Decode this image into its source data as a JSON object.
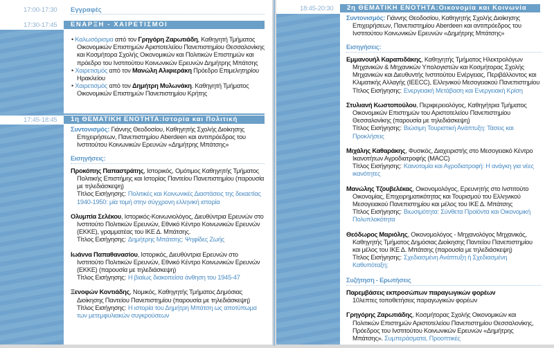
{
  "colors": {
    "band": "#7cadd3",
    "bar": "#6a9fc7",
    "accent": "#4a8bc2",
    "time": "#8fb2d2"
  },
  "title_label": "Τίτλος Εισήγησης:",
  "left": {
    "registration": {
      "time": "17:00-17:30",
      "label": "Εγγραφές"
    },
    "opening": {
      "time": "17:30-17:45",
      "header": "ΕΝΑΡΞΗ - ΧΑΙΡΕΤΙΣΜΟΙ",
      "items": [
        {
          "accent": "Καλωσόρισμα",
          "pre": " από τον ",
          "name": "Γρηγόρη Ζαρωτιάδη",
          "rest": ", Καθηγητή Τμήματος Οικονομικών Επιστημών Αριστοτελείου Πανεπιστημίου Θεσσαλονίκης και Κοσμήτορα Σχολής Οικονομικών και Πολιτικών Επιστημών και πρόεδρο του Ινστιτούτου Κοινωνικών Ερευνών Δημήτρης Μπάτσης"
        },
        {
          "accent": "Χαιρετισμός",
          "pre": " από τον ",
          "name": "Μανώλη Αλιφιεράκη",
          "rest": " Πρόεδρο Επιμελητηρίου Ηρακλείου"
        },
        {
          "accent": "Χαιρετισμός",
          "pre": " από τον ",
          "name": "Δημήτρη Μυλωνάκη",
          "rest": ". Καθηγητή Τμήματος Οικονομικών Επιστημών Πανεπιστημίου Κρήτης"
        }
      ]
    },
    "session": {
      "time": "17:45-18:45",
      "header": "1η ΘΕΜΑΤΙΚΗ ΕΝΟΤΗΤΑ:Ιστορία και Πολιτική",
      "coord_label": "Συντονισμός:",
      "coord": " Γιάννης Θεοδοσίου, Καθηγητής Σχολής Διοίκησης Επιχειρήσεων, Πανεπιστημίου Aberdeen και αντιπρόεδρος του Ινστιτούτου Κοινωνικών Ερευνών «Δημήτρης Μπάτσης»",
      "talks_label": "Εισηγήσεις:",
      "talks": [
        {
          "name": "Προκόπης Παπαστράτης",
          "aff": ", Ιστορικός, Ομότιμος Καθηγητής Τμήματος Πολιτικής Επιστήμης και Ιστορίας Παντείου Πανεπιστημίου (παρουσία με τηλεδιάσκεψη)",
          "title": "Πολιτικές και Κοινωνικές Διαστάσεις της δεκαετίας 1940-1950: μία τομή στην σύγχρονη ελληνική ιστορία"
        },
        {
          "name": "Ολυμπία Σελέκου",
          "aff": ", Ιστορικός-Κοινωνιολόγος, Διευθύντρια Ερευνών στο Ινστιτούτο Πολιτικών Ερευνών, Εθνικό Κέντρο Κοινωνικών Ερευνών (ΕΚΚΕ), γραμματέας του ΙΚΕ Δ. Μπάτσης.",
          "title": "Δημήτρης Μπάτσης: Ψηφίδες Ζωής"
        },
        {
          "name": "Ιωάννα Παπαθανασίου",
          "aff": ", Ιστορικός, Διευθύντρια Ερευνών στο Ινστιτούτο Πολιτικών Ερευνών, Εθνικό Κέντρο Κοινωνικών Ερευνών (ΕΚΚΕ) (παρουσία με τηλεδιάσκεψη)",
          "title": "Η βιαίως διακοπείσα άνθηση του 1945-47"
        },
        {
          "name": "Ξενοφών Κοντιάδης",
          "aff": ", Νομικός, Καθηγητής Τμήματος Δημόσιας Διοίκησης Παντείου Πανεπιστημίου (παρουσία με τηλεδιάσκεψη)",
          "title": "Η ιστορία του Δημήτρη Μπάτση ως αποτύπωμα των μετεμφυλιακών συγκρούσεων"
        }
      ]
    }
  },
  "right": {
    "session": {
      "time": "18:45-20:30",
      "header": "2η ΘΕΜΑΤΙΚΗ ΕΝΟΤΗΤΑ:Οικονομία και Κοινωνία",
      "coord_label": "Συντονισμός:",
      "coord": " Γιάννης Θεοδοσίου, Καθηγητής Σχολής Διοίκησης Επιχειρήσεων, Πανεπιστημίου Aberdeen και αντιπρόεδρος του Ινστιτούτου Κοινωνικών Ερευνών «Δημήτρης Μπάτσης»",
      "talks_label": "Εισηγήσεις:",
      "talks": [
        {
          "name": "Εμμανουήλ Καραπιδάκης",
          "aff": ", Καθηγητής Τμήματος Ηλεκτρολόγων Μηχανικών & Μηχανικών Υπολογιστών και Κοσμήτορας Σχολής Μηχανικών και Διευθυντής Ινστιτούτου Ενέργειας, Περιβάλλοντος και Κλιματικής Αλλαγής (IEECC), Ελληνικού Μεσογειακού Πανεπιστημίου",
          "title": "Ενεργειακή Μετάβαση και Ενεργειακή Κρίση"
        },
        {
          "name": "Στυλιανή Κωστοπούλου",
          "aff": ", Περιφερειολόγος, Καθηγήτρια Τμήματος Οικονομικών Επιστημών του Αριστοτελείου Πανεπιστημίου Θεσσαλονίκης (παρουσία με τηλεδιάσκεψη)",
          "title": "Βιώσιμη Τουριστική Ανάπτυξη: Τάσεις και Προκλήσεις"
        },
        {
          "name": "Μιχάλης Καθαράκης",
          "aff": ", Φυσικός, Διαχειριστής στο Μεσογειακό Κέντρο Ικανοτήτων Αγροδιατροφής (MACC)",
          "title": "Καινοτομία και Αγροδιατροφή: Η ανάγκη για νέες ικανότητες"
        },
        {
          "name": "Μανώλης Τζουβελέκας",
          "aff": ", Οικονομολόγος, Ερευνητής στο Ινστιτούτο Οικονομίας, Επιχειρηματικότητας και Τουρισμού του Ελληνικού Μεσογειακού Πανεπιστημίου και μέλος του ΙΚΕ Δ. Μπάτσης",
          "title": "Βιωσιμότητα: Σύνθετα Προϊόντα και Οικονομική Πολυπλοκότητα"
        },
        {
          "name": "Θεόδωρος Μαριόλης",
          "aff": ", Οικονομολόγος - Μηχανολόγος Μηχανικός, Καθηγητής Τμήματος Δημόσιας Διοίκησης Παντείου Πανεπιστημίου και μέλος του ΙΚΕ Δ. Μπάτσης (παρουσία με τηλεδιάσκεψη)",
          "title": "Σχεδιασμένη Ανάπτυξη ή Σχεδιασμένη Καθυπόταξη;"
        }
      ],
      "discussion_label": "Συζήτηση - Ερωτήσεις",
      "interventions": {
        "name": "Παρεμβάσεις εκπροσώπων παραγωγικών φορέων",
        "text": "10λεπτες τοποθετήσεις παραγωγικών φορέων"
      },
      "closing": {
        "name": "Γρηγόρης Ζαρωτιάδης",
        "aff": ", Κοσμήτορας Σχολής Οικονομικών και Πολιτικών Επιστημών Αριστοτελείου Πανεπιστημίου Θεσσαλονίκης, Πρόεδρος του Ινστιτούτου Κοινωνικών Ερευνών «Δημήτρης Μπάτσης».",
        "title": " Συμπεράσματα, Προοπτικές"
      }
    }
  }
}
